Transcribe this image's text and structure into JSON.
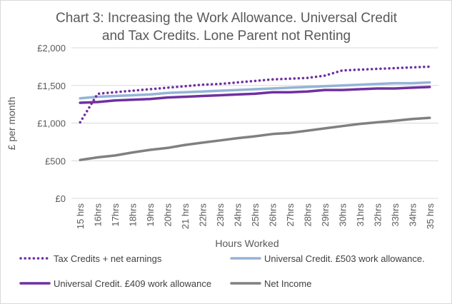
{
  "chart_data": {
    "type": "line",
    "title_lines": [
      "Chart 3: Increasing the Work Allowance.  Universal Credit",
      "and Tax Credits.  Lone Parent not Renting"
    ],
    "xlabel": "Hours Worked",
    "ylabel": "£ per month",
    "ylim": [
      0,
      2000
    ],
    "y_ticks": [
      0,
      500,
      1000,
      1500,
      2000
    ],
    "y_tick_labels": [
      "£0",
      "£500",
      "£1,000",
      "£1,500",
      "£2,000"
    ],
    "grid": true,
    "legend_position": "bottom",
    "categories": [
      "15 hrs",
      "16hrs",
      "17hrs",
      "18hrs",
      "19hrs",
      "20hrs",
      "21 hrs",
      "22hrs",
      "23hrs",
      "24hrs",
      "25hrs",
      "26hrs",
      "27hrs",
      "28hrs",
      "29hrs",
      "30hrs",
      "31hrs",
      "32hrs",
      "33hrs",
      "34hrs",
      "35 hrs"
    ],
    "series": [
      {
        "name": "Tax Credits + net earnings",
        "color": "#7030a0",
        "style": "dotted",
        "values": [
          1010,
          1390,
          1410,
          1430,
          1450,
          1470,
          1490,
          1510,
          1520,
          1540,
          1560,
          1580,
          1590,
          1600,
          1630,
          1700,
          1710,
          1720,
          1730,
          1740,
          1750
        ]
      },
      {
        "name": "Universal Credit.  £503 work allowance.",
        "color": "#95b3d7",
        "style": "solid",
        "values": [
          1330,
          1350,
          1360,
          1370,
          1380,
          1400,
          1410,
          1420,
          1430,
          1440,
          1450,
          1460,
          1470,
          1480,
          1490,
          1500,
          1510,
          1520,
          1530,
          1530,
          1540
        ]
      },
      {
        "name": "Universal Credit. £409 work allowance",
        "color": "#7030a0",
        "style": "solid",
        "values": [
          1270,
          1280,
          1300,
          1310,
          1320,
          1340,
          1350,
          1360,
          1370,
          1380,
          1390,
          1410,
          1410,
          1420,
          1440,
          1440,
          1450,
          1460,
          1460,
          1470,
          1480
        ]
      },
      {
        "name": "Net Income",
        "color": "#808080",
        "style": "solid",
        "values": [
          510,
          545,
          570,
          610,
          645,
          670,
          710,
          740,
          770,
          800,
          825,
          855,
          870,
          900,
          930,
          960,
          990,
          1010,
          1030,
          1055,
          1070
        ]
      }
    ]
  }
}
